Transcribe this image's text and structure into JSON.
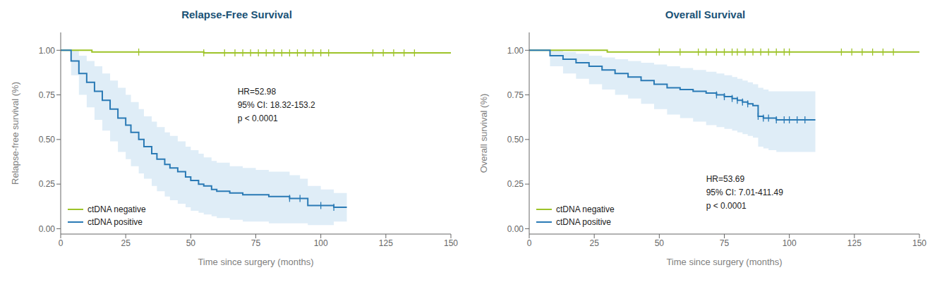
{
  "chart_data": [
    {
      "type": "step",
      "title": "Relapse-Free Survival",
      "x_label": "Time since surgery (months)",
      "y_label": "Relapse-free survival (%)",
      "xlim": [
        0,
        150
      ],
      "ylim": [
        -0.03,
        1.1
      ],
      "xticks": [
        0,
        25,
        50,
        75,
        100,
        125,
        150
      ],
      "yticks": [
        {
          "value": 0.0,
          "label": "0.00"
        },
        0.25,
        {
          "value": 0.5,
          "label": "0.50"
        },
        0.75,
        {
          "value": 1.0,
          "label": "1.00"
        }
      ],
      "grid": false,
      "legend": "lower left",
      "annotations": [
        {
          "text": "HR=52.98\n95% CI: 18.32-153.2\np < 0.0001",
          "x": 68,
          "y": 0.8
        }
      ],
      "series": [
        {
          "name": "ctDNA negative",
          "color": "#9dc328",
          "x": [
            0,
            5,
            12,
            30,
            55,
            150
          ],
          "values": [
            1.0,
            1.0,
            0.99,
            0.99,
            0.985,
            0.985
          ],
          "censor_x": [
            30,
            55,
            63,
            67,
            70,
            73,
            76,
            79,
            82,
            85,
            88,
            91,
            94,
            97,
            100,
            103,
            120,
            124,
            128,
            132,
            136
          ],
          "censor_values": [
            0.99,
            0.985,
            0.985,
            0.985,
            0.985,
            0.985,
            0.985,
            0.985,
            0.985,
            0.985,
            0.985,
            0.985,
            0.985,
            0.985,
            0.985,
            0.985,
            0.985,
            0.985,
            0.985,
            0.985,
            0.985
          ]
        },
        {
          "name": "ctDNA positive",
          "color": "#2a7ab5",
          "x": [
            0,
            4,
            7,
            10,
            13,
            16,
            19,
            22,
            25,
            27,
            30,
            32,
            35,
            37,
            40,
            42,
            45,
            48,
            50,
            53,
            55,
            58,
            60,
            65,
            70,
            75,
            80,
            85,
            88,
            92,
            95,
            100,
            105,
            110
          ],
          "values": [
            1.0,
            0.94,
            0.87,
            0.82,
            0.77,
            0.72,
            0.67,
            0.62,
            0.58,
            0.54,
            0.5,
            0.46,
            0.42,
            0.39,
            0.36,
            0.34,
            0.32,
            0.29,
            0.27,
            0.25,
            0.24,
            0.22,
            0.21,
            0.2,
            0.19,
            0.19,
            0.18,
            0.18,
            0.17,
            0.17,
            0.13,
            0.13,
            0.12,
            0.12
          ],
          "censor_x": [
            88,
            92,
            100,
            105
          ],
          "censor_values": [
            0.17,
            0.17,
            0.13,
            0.12
          ],
          "ci": {
            "color": "#c5dff0",
            "x": [
              0,
              4,
              7,
              10,
              13,
              16,
              19,
              22,
              25,
              27,
              30,
              32,
              35,
              37,
              40,
              42,
              45,
              48,
              50,
              53,
              55,
              58,
              60,
              65,
              70,
              75,
              80,
              85,
              88,
              92,
              95,
              100,
              105,
              110
            ],
            "upper": [
              1.0,
              1.0,
              0.97,
              0.94,
              0.91,
              0.87,
              0.83,
              0.79,
              0.75,
              0.71,
              0.67,
              0.63,
              0.6,
              0.57,
              0.54,
              0.52,
              0.49,
              0.46,
              0.44,
              0.42,
              0.4,
              0.38,
              0.37,
              0.35,
              0.34,
              0.33,
              0.32,
              0.32,
              0.3,
              0.28,
              0.24,
              0.22,
              0.2,
              0.19
            ],
            "lower": [
              1.0,
              0.86,
              0.75,
              0.68,
              0.61,
              0.55,
              0.49,
              0.43,
              0.39,
              0.35,
              0.31,
              0.28,
              0.24,
              0.21,
              0.18,
              0.16,
              0.14,
              0.12,
              0.1,
              0.09,
              0.08,
              0.07,
              0.06,
              0.05,
              0.04,
              0.04,
              0.03,
              0.03,
              0.03,
              0.03,
              0.02,
              0.02,
              0.04,
              0.05
            ]
          }
        }
      ]
    },
    {
      "type": "step",
      "title": "Overall Survival",
      "x_label": "Time since surgery (months)",
      "y_label": "Overall survival (%)",
      "xlim": [
        0,
        150
      ],
      "ylim": [
        -0.03,
        1.1
      ],
      "xticks": [
        0,
        25,
        50,
        75,
        100,
        125,
        150
      ],
      "yticks": [
        {
          "value": 0.0,
          "label": "0.00"
        },
        0.25,
        {
          "value": 0.5,
          "label": "0.50"
        },
        0.75,
        {
          "value": 1.0,
          "label": "1.00"
        }
      ],
      "grid": false,
      "legend": "lower left",
      "annotations": [
        {
          "text": "HR=53.69\n95% CI: 7.01-411.49\np < 0.0001",
          "x": 68,
          "y": 0.31
        }
      ],
      "series": [
        {
          "name": "ctDNA negative",
          "color": "#9dc328",
          "x": [
            0,
            12,
            30,
            150
          ],
          "values": [
            1.0,
            1.0,
            0.99,
            0.99
          ],
          "censor_x": [
            50,
            58,
            65,
            68,
            72,
            75,
            78,
            80,
            83,
            86,
            89,
            92,
            95,
            98,
            100,
            120,
            124,
            128,
            132,
            136,
            140
          ],
          "censor_values": [
            0.99,
            0.99,
            0.99,
            0.99,
            0.99,
            0.99,
            0.99,
            0.99,
            0.99,
            0.99,
            0.99,
            0.99,
            0.99,
            0.99,
            0.99,
            0.99,
            0.99,
            0.99,
            0.99,
            0.99,
            0.99
          ]
        },
        {
          "name": "ctDNA positive",
          "color": "#2a7ab5",
          "x": [
            0,
            8,
            13,
            18,
            23,
            28,
            33,
            38,
            43,
            48,
            53,
            58,
            63,
            68,
            72,
            75,
            78,
            80,
            82,
            84,
            86,
            88,
            90,
            92,
            95,
            98,
            100,
            103,
            106,
            110
          ],
          "values": [
            1.0,
            0.97,
            0.95,
            0.93,
            0.91,
            0.89,
            0.87,
            0.85,
            0.83,
            0.81,
            0.79,
            0.78,
            0.77,
            0.76,
            0.75,
            0.74,
            0.73,
            0.72,
            0.71,
            0.7,
            0.69,
            0.63,
            0.62,
            0.62,
            0.61,
            0.61,
            0.61,
            0.61,
            0.61,
            0.61
          ],
          "censor_x": [
            72,
            75,
            78,
            80,
            82,
            84,
            88,
            90,
            92,
            95,
            98,
            100,
            103,
            106
          ],
          "censor_values": [
            0.75,
            0.74,
            0.73,
            0.72,
            0.71,
            0.7,
            0.63,
            0.62,
            0.62,
            0.61,
            0.61,
            0.61,
            0.61,
            0.61
          ],
          "ci": {
            "color": "#c5dff0",
            "x": [
              0,
              8,
              13,
              18,
              23,
              28,
              33,
              38,
              43,
              48,
              53,
              58,
              63,
              68,
              72,
              75,
              78,
              80,
              82,
              84,
              86,
              88,
              90,
              92,
              95,
              98,
              100,
              103,
              106,
              110
            ],
            "upper": [
              1.0,
              1.0,
              0.99,
              0.98,
              0.97,
              0.96,
              0.95,
              0.94,
              0.93,
              0.92,
              0.91,
              0.9,
              0.89,
              0.88,
              0.87,
              0.86,
              0.85,
              0.84,
              0.83,
              0.82,
              0.81,
              0.79,
              0.78,
              0.77,
              0.77,
              0.77,
              0.77,
              0.77,
              0.77,
              0.77
            ],
            "lower": [
              1.0,
              0.91,
              0.87,
              0.84,
              0.81,
              0.78,
              0.75,
              0.73,
              0.7,
              0.67,
              0.64,
              0.62,
              0.6,
              0.58,
              0.57,
              0.56,
              0.55,
              0.54,
              0.53,
              0.52,
              0.51,
              0.46,
              0.45,
              0.44,
              0.43,
              0.43,
              0.43,
              0.43,
              0.43,
              0.48
            ]
          }
        }
      ]
    }
  ]
}
